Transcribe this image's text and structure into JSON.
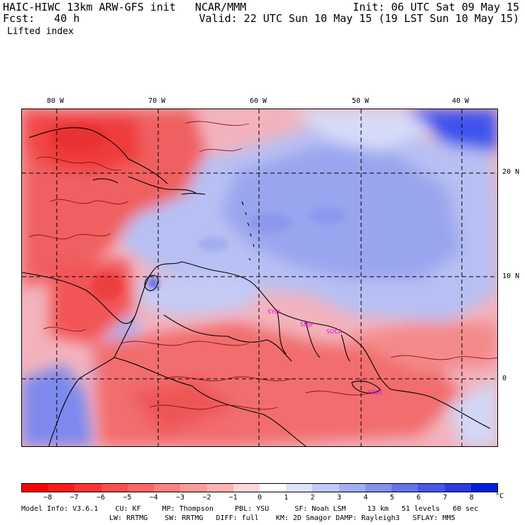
{
  "header": {
    "title_left": "HAIC-HIWC 13km ARW-GFS init   NCAR/MMM",
    "init": "Init: 06 UTC Sat 09 May 15",
    "fcst": "Fcst:   40 h",
    "valid": "Valid: 22 UTC Sun 10 May 15 (19 LST Sun 10 May 15)",
    "field": "Lifted index"
  },
  "map": {
    "lon_labels": [
      "80 W",
      "70 W",
      "60 W",
      "50 W",
      "40 W"
    ],
    "lat_labels": [
      "20 N",
      "10 N",
      "0"
    ],
    "stations": [
      "SYEI",
      "SMJP",
      "SOCA",
      "SBBE"
    ],
    "colors": {
      "strong_unstable": "#ff2a2a",
      "unstable": "#f56767",
      "neutral": "#ffe6e6",
      "stable": "#b6bdf2",
      "strong_stable": "#2a3ff0",
      "coast": "#000000",
      "contour": "#7a0010",
      "station": "#e010e0"
    }
  },
  "colorbar": {
    "ticks": [
      "−8",
      "−7",
      "−6",
      "−5",
      "−4",
      "−3",
      "−2",
      "−1",
      "0",
      "1",
      "2",
      "3",
      "4",
      "5",
      "6",
      "7",
      "8"
    ],
    "unit": "°C",
    "colors": [
      "#ff0000",
      "#ff1a1a",
      "#ff3333",
      "#ff4d4d",
      "#ff6666",
      "#ff8080",
      "#ff9a9a",
      "#ffb3b3",
      "#ffd6d6",
      "#ffffff",
      "#e0e4fb",
      "#c2c9f7",
      "#a3adf3",
      "#8590ef",
      "#6674eb",
      "#4858e7",
      "#2a3ce3",
      "#0020e0"
    ]
  },
  "model_info": {
    "line1": "Model Info: V3.6.1    CU: KF     MP: Thompson     PBL: YSU      SF: Noah LSM     13 km   51 levels   60 sec",
    "line2": "LW: RRTMG    SW: RRTMG   DIFF: full    KM: 2D Smagor DAMP: Rayleigh3   SFLAY: MM5"
  }
}
